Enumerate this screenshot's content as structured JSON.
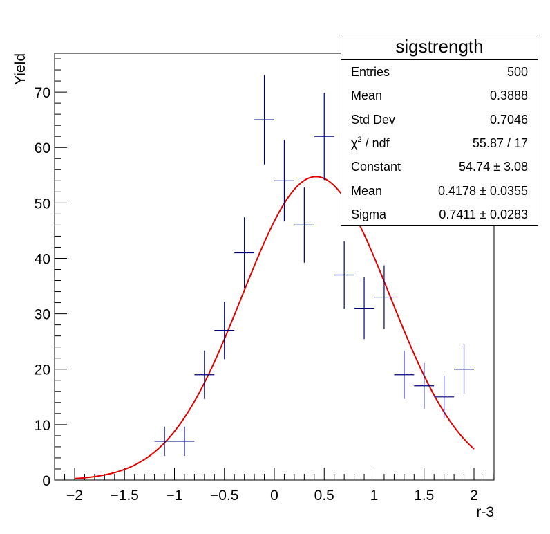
{
  "chart_data": {
    "type": "histogram",
    "title": "",
    "xlabel": "r-3",
    "ylabel": "Yield",
    "xlim": [
      -2.2,
      2.2
    ],
    "ylim": [
      0,
      77
    ],
    "x_ticks": [
      -2,
      -1.5,
      -1,
      -0.5,
      0,
      0.5,
      1,
      1.5,
      2
    ],
    "x_tick_labels": [
      "−2",
      "−1.5",
      "−1",
      "−0.5",
      "0",
      "0.5",
      "1",
      "1.5",
      "2"
    ],
    "y_ticks": [
      0,
      10,
      20,
      30,
      40,
      50,
      60,
      70
    ],
    "y_tick_labels": [
      "0",
      "10",
      "20",
      "30",
      "40",
      "50",
      "60",
      "70"
    ],
    "bin_width": 0.2,
    "series": [
      {
        "name": "sigstrength",
        "color": "#00007f",
        "style": "errorbar",
        "x": [
          -1.1,
          -0.9,
          -0.7,
          -0.5,
          -0.3,
          -0.1,
          0.1,
          0.3,
          0.5,
          0.7,
          0.9,
          1.1,
          1.3,
          1.5,
          1.7,
          1.9
        ],
        "y": [
          7,
          7,
          19,
          27,
          41,
          65,
          54,
          46,
          62,
          37,
          31,
          33,
          19,
          17,
          15,
          20
        ]
      }
    ],
    "fit": {
      "type": "gaus",
      "color": "#e00000",
      "range": [
        -2,
        2
      ],
      "constant": 54.74,
      "mean": 0.4178,
      "sigma": 0.7411
    },
    "stats_box": {
      "title": "sigstrength",
      "rows": [
        {
          "key": "Entries",
          "value": "500"
        },
        {
          "key": "Mean",
          "value": "0.3888"
        },
        {
          "key": "Std Dev",
          "value": "0.7046"
        },
        {
          "key": "χ",
          "key_sup": "2",
          "key_tail": " / ndf",
          "value": "55.87 / 17"
        },
        {
          "key": "Constant",
          "value": "54.74 ± 3.08"
        },
        {
          "key": "Mean",
          "value": "0.4178 ± 0.0355"
        },
        {
          "key": "Sigma",
          "value": "0.7411 ± 0.0283"
        }
      ]
    }
  }
}
